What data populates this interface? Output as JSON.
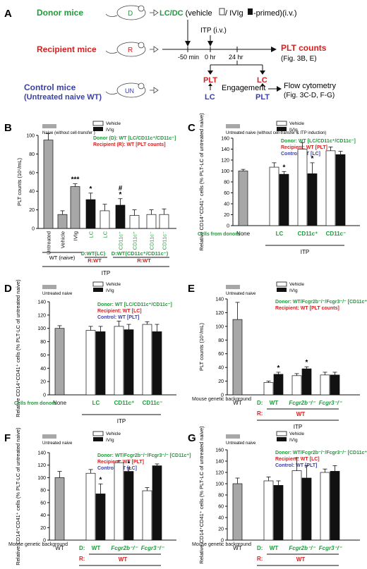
{
  "colors": {
    "green": "#1f9a3a",
    "red": "#d62020",
    "blue": "#3a3fa8",
    "gray": "#a7a7a7",
    "black": "#111111"
  },
  "schematic": {
    "panel_letter": "A",
    "donor_label": "Donor mice",
    "donor_letter": "D",
    "recipient_label": "Recipient mice",
    "recipient_letter": "R",
    "control_label_1": "Control mice",
    "control_label_2": "(Untreated naive WT)",
    "control_letter": "UN",
    "transfer_prefix": "LC/DC",
    "transfer_mid": "(vehicle",
    "transfer_mid2": "/ IVIg",
    "transfer_suffix": "-primed)(i.v.)",
    "itp_label": "ITP (i.v.)",
    "time_1": "-50 min",
    "time_2": "0 hr",
    "time_3": "24 hr",
    "plt_counts": "PLT counts",
    "plt_counts_ref": "(Fig. 3B, E)",
    "eng_plt_left": "PLT",
    "eng_lc_right": "LC",
    "engagement": "Engagement",
    "eng_lc_left": "LC",
    "eng_plt_right": "PLT",
    "flow_1": "Flow cytometry",
    "flow_2": "(Fig. 3C-D, F-G)"
  },
  "chart_data": [
    {
      "panel": "B",
      "type": "bar",
      "ylabel": "PLT counts (10⁷/mL)",
      "ylim": [
        0,
        100
      ],
      "yticks": [
        0,
        20,
        40,
        60,
        80,
        100
      ],
      "legend": {
        "gray": "Naive (without cell-transfer )",
        "white": "Vehicle",
        "black": "IVIg"
      },
      "info": [
        {
          "text": "Donor (D): WT [LC/CD11c⁺/CD11c⁻]",
          "color": "green"
        },
        {
          "text": "Recipient (R): WT [PLT counts]",
          "color": "red"
        }
      ],
      "categories": [
        "Untreated",
        "Vehicle",
        "IVIg",
        "LC",
        "LC",
        "CD11c⁺",
        "CD11c⁺",
        "CD11c⁻",
        "CD11c⁻"
      ],
      "bars": [
        {
          "v": 95,
          "e": 7,
          "fill": "gray",
          "sig": ""
        },
        {
          "v": 15,
          "e": 4,
          "fill": "gray",
          "sig": ""
        },
        {
          "v": 45,
          "e": 3,
          "fill": "gray",
          "sig": "***"
        },
        {
          "v": 31,
          "e": 7,
          "fill": "black",
          "sig": "*"
        },
        {
          "v": 19,
          "e": 7,
          "fill": "white",
          "sig": ""
        },
        {
          "v": 25,
          "e": 7,
          "fill": "black",
          "sig": "#\n*"
        },
        {
          "v": 14,
          "e": 6,
          "fill": "white",
          "sig": ""
        },
        {
          "v": 15,
          "e": 5,
          "fill": "white",
          "sig": ""
        },
        {
          "v": 15,
          "e": 6,
          "fill": "white",
          "sig": ""
        }
      ],
      "groups": [
        "WT (naive)",
        "D:WT(LC)",
        "R:WT",
        "D:WT(CD11c⁺/CD11c⁻)",
        "R:WT"
      ],
      "itp": "ITP"
    },
    {
      "panel": "C",
      "type": "bar",
      "ylabel": "Relative CD14⁺CD41⁺ cells (% PLT-LC of untreated naive)",
      "ylim": [
        0,
        160
      ],
      "yticks": [
        0,
        20,
        40,
        60,
        80,
        100,
        120,
        140,
        160
      ],
      "legend": {
        "gray": "Untreated naive (without cell-transfer & ITP induction)",
        "white": "Vehicle",
        "black": "IVIg"
      },
      "info": [
        {
          "text": "Donor: WT [LC/CD11c⁺/CD11c⁻]",
          "color": "green"
        },
        {
          "text": "Recipient: WT [PLT]",
          "color": "red"
        },
        {
          "text": "Control: WT [LC]",
          "color": "blue"
        }
      ],
      "row_label": "Cells from donors",
      "categories": [
        "None",
        "LC",
        "CD11c⁺",
        "CD11c⁻"
      ],
      "bars": [
        {
          "v": 100,
          "e": 3,
          "fill": "gray",
          "sig": ""
        },
        {
          "v": 107,
          "e": 8,
          "fill": "white",
          "sig": ""
        },
        {
          "v": 94,
          "e": 5,
          "fill": "black",
          "sig": "*"
        },
        {
          "v": 140,
          "e": 12,
          "fill": "white",
          "sig": ""
        },
        {
          "v": 95,
          "e": 20,
          "fill": "black",
          "sig": "*"
        },
        {
          "v": 137,
          "e": 7,
          "fill": "white",
          "sig": ""
        },
        {
          "v": 130,
          "e": 6,
          "fill": "black",
          "sig": ""
        }
      ],
      "itp": "ITP"
    },
    {
      "panel": "D",
      "type": "bar",
      "ylabel": "Relative CD14⁺CD41⁺ cells (% PLT-LC of untreated naive)",
      "ylim": [
        0,
        140
      ],
      "yticks": [
        0,
        20,
        40,
        60,
        80,
        100,
        120,
        140
      ],
      "legend": {
        "gray": "Untreated naive",
        "white": "Vehicle",
        "black": "IVIg"
      },
      "info": [
        {
          "text": "Donor: WT [LC/CD11c⁺/CD11c⁻]",
          "color": "green"
        },
        {
          "text": "Recipient: WT [LC]",
          "color": "red"
        },
        {
          "text": "Control: WT [PLT]",
          "color": "blue"
        }
      ],
      "row_label": "Cells from donors",
      "categories": [
        "None",
        "LC",
        "CD11c⁺",
        "CD11c⁻"
      ],
      "bars": [
        {
          "v": 100,
          "e": 4,
          "fill": "gray",
          "sig": ""
        },
        {
          "v": 97,
          "e": 6,
          "fill": "white",
          "sig": ""
        },
        {
          "v": 95,
          "e": 8,
          "fill": "black",
          "sig": ""
        },
        {
          "v": 103,
          "e": 8,
          "fill": "white",
          "sig": ""
        },
        {
          "v": 98,
          "e": 8,
          "fill": "black",
          "sig": ""
        },
        {
          "v": 106,
          "e": 4,
          "fill": "white",
          "sig": ""
        },
        {
          "v": 95,
          "e": 11,
          "fill": "black",
          "sig": ""
        }
      ],
      "itp": "ITP"
    },
    {
      "panel": "E",
      "type": "bar",
      "ylabel": "PLT counts (10⁷/mL)",
      "ylim": [
        0,
        140
      ],
      "yticks": [
        0,
        20,
        40,
        60,
        80,
        100,
        120,
        140
      ],
      "legend": {
        "gray": "Untreated naive",
        "white": "Vehicle",
        "black": "IVIg"
      },
      "info": [
        {
          "text": "Donor: WT/Fcgr2b⁻/⁻/Fcgr3⁻/⁻ [CD11c⁺]",
          "color": "green"
        },
        {
          "text": "Recipient: WT [PLT counts]",
          "color": "red"
        }
      ],
      "row_label": "Mouse genetic background",
      "categories": [
        "WT",
        "WT",
        "Fcgr2b⁻/⁻",
        "Fcgr3⁻/⁻"
      ],
      "bars": [
        {
          "v": 110,
          "e": 25,
          "fill": "gray",
          "sig": ""
        },
        {
          "v": 18,
          "e": 2,
          "fill": "white",
          "sig": ""
        },
        {
          "v": 30,
          "e": 3,
          "fill": "black",
          "sig": "*"
        },
        {
          "v": 28,
          "e": 3,
          "fill": "white",
          "sig": ""
        },
        {
          "v": 38,
          "e": 3,
          "fill": "black",
          "sig": "*"
        },
        {
          "v": 29,
          "e": 4,
          "fill": "white",
          "sig": ""
        },
        {
          "v": 29,
          "e": 4,
          "fill": "black",
          "sig": ""
        }
      ],
      "d_label": "D:",
      "r_label": "R:",
      "r_value": "WT",
      "itp": "ITP"
    },
    {
      "panel": "F",
      "type": "bar",
      "ylabel": "Relative CD14⁺CD41⁺ cells (% PLT-LC of untreated naive)",
      "ylim": [
        0,
        140
      ],
      "yticks": [
        0,
        20,
        40,
        60,
        80,
        100,
        120,
        140
      ],
      "legend": {
        "gray": "Untreated naive",
        "white": "Vehicle",
        "black": "IVIg"
      },
      "info": [
        {
          "text": "Donor: WT/Fcgr2b⁻/⁻/Fcgr3⁻/⁻ [CD11c⁺]",
          "color": "green"
        },
        {
          "text": "Recipient: WT [PLT]",
          "color": "red"
        },
        {
          "text": "Control: WT [LC]",
          "color": "blue"
        }
      ],
      "row_label": "Mouse genetic background",
      "categories": [
        "WT",
        "WT",
        "Fcgr2b⁻/⁻",
        "Fcgr3⁻/⁻"
      ],
      "bars": [
        {
          "v": 100,
          "e": 10,
          "fill": "gray",
          "sig": ""
        },
        {
          "v": 107,
          "e": 6,
          "fill": "white",
          "sig": ""
        },
        {
          "v": 74,
          "e": 16,
          "fill": "black",
          "sig": "*"
        },
        {
          "v": 124,
          "e": 3,
          "fill": "white",
          "sig": ""
        },
        {
          "v": 110,
          "e": 6,
          "fill": "black",
          "sig": "*"
        },
        {
          "v": 79,
          "e": 5,
          "fill": "white",
          "sig": ""
        },
        {
          "v": 119,
          "e": 3,
          "fill": "black",
          "sig": ""
        }
      ],
      "d_label": "D:",
      "r_label": "R:",
      "r_value": "WT",
      "itp": "ITP"
    },
    {
      "panel": "G",
      "type": "bar",
      "ylabel": "Relative CD14⁺CD41⁺ cells (% PLT-LC of untreated naive)",
      "ylim": [
        0,
        160
      ],
      "yticks": [
        0,
        20,
        40,
        60,
        80,
        100,
        120,
        140,
        160
      ],
      "legend": {
        "gray": "Untreated naive",
        "white": "Vehicle",
        "black": "IVIg"
      },
      "info": [
        {
          "text": "Donor: WT/Fcgr2b⁻/⁻/Fcgr3⁻/⁻ [CD11c⁺]",
          "color": "green"
        },
        {
          "text": "Recipient: WT [LC]",
          "color": "red"
        },
        {
          "text": "Control: WT [PLT]",
          "color": "blue"
        }
      ],
      "row_label": "Mouse genetic background",
      "categories": [
        "WT",
        "WT",
        "Fcgr2b⁻/⁻",
        "Fcgr3⁻/⁻"
      ],
      "bars": [
        {
          "v": 100,
          "e": 10,
          "fill": "gray",
          "sig": ""
        },
        {
          "v": 105,
          "e": 7,
          "fill": "white",
          "sig": ""
        },
        {
          "v": 97,
          "e": 8,
          "fill": "black",
          "sig": ""
        },
        {
          "v": 123,
          "e": 23,
          "fill": "white",
          "sig": ""
        },
        {
          "v": 110,
          "e": 22,
          "fill": "black",
          "sig": ""
        },
        {
          "v": 120,
          "e": 6,
          "fill": "white",
          "sig": ""
        },
        {
          "v": 122,
          "e": 10,
          "fill": "black",
          "sig": ""
        }
      ],
      "d_label": "D:",
      "r_label": "R:",
      "r_value": "WT",
      "itp": "ITP"
    }
  ]
}
